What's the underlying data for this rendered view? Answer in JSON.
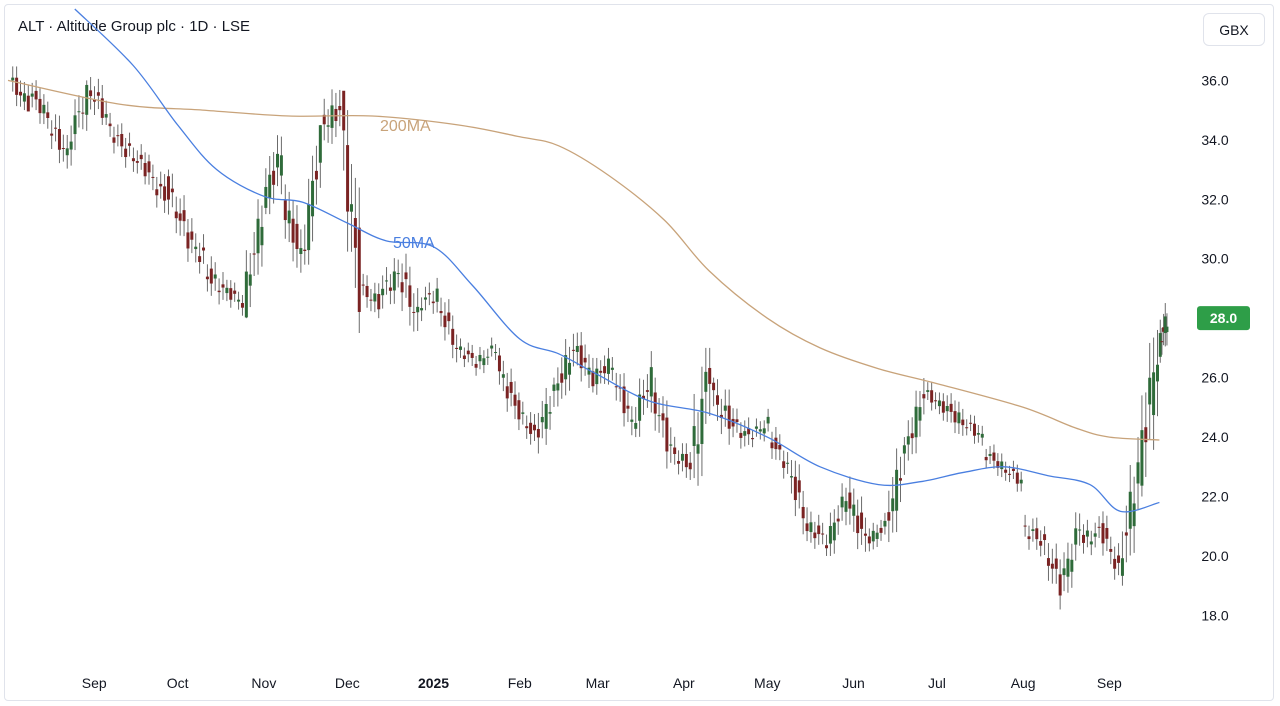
{
  "header": {
    "title": "ALT · Altitude Group plc · 1D · LSE"
  },
  "currency_button": {
    "label": "GBX"
  },
  "price_badge": {
    "label": "28.0",
    "color": "#2e9e48"
  },
  "ma_labels": {
    "ma200": "200MA",
    "ma50": "50MA"
  },
  "colors": {
    "up": "#2f6b3a",
    "down": "#7a2323",
    "ma200": "#c8a37a",
    "ma50": "#4a7fe0"
  },
  "chart_data": {
    "type": "candlestick",
    "title": "ALT · Altitude Group plc · 1D · LSE",
    "currency": "GBX",
    "y_ticks": [
      "36.0",
      "34.0",
      "32.0",
      "30.0",
      "28.0",
      "26.0",
      "24.0",
      "22.0",
      "20.0",
      "18.0"
    ],
    "ylim": [
      16.5,
      38.3
    ],
    "x_ticks": [
      {
        "label": "Sep",
        "date": "2024-09-01",
        "bold": false
      },
      {
        "label": "Oct",
        "date": "2024-10-01",
        "bold": false
      },
      {
        "label": "Nov",
        "date": "2024-11-01",
        "bold": false
      },
      {
        "label": "Dec",
        "date": "2024-12-01",
        "bold": false
      },
      {
        "label": "2025",
        "date": "2025-01-01",
        "bold": true
      },
      {
        "label": "Feb",
        "date": "2025-02-01",
        "bold": false
      },
      {
        "label": "Mar",
        "date": "2025-03-01",
        "bold": false
      },
      {
        "label": "Apr",
        "date": "2025-04-01",
        "bold": false
      },
      {
        "label": "May",
        "date": "2025-05-01",
        "bold": false
      },
      {
        "label": "Jun",
        "date": "2025-06-01",
        "bold": false
      },
      {
        "label": "Jul",
        "date": "2025-07-01",
        "bold": false
      },
      {
        "label": "Aug",
        "date": "2025-08-01",
        "bold": false
      },
      {
        "label": "Sep",
        "date": "2025-09-01",
        "bold": false
      }
    ],
    "last_price": 28.0,
    "ohlc_approx": [
      [
        "2024-08-02",
        36.0,
        37.1,
        35.0,
        35.2
      ],
      [
        "2024-08-09",
        35.6,
        36.2,
        34.2,
        34.8
      ],
      [
        "2024-08-16",
        34.5,
        35.0,
        32.5,
        33.5
      ],
      [
        "2024-08-23",
        34.0,
        36.0,
        33.0,
        35.5
      ],
      [
        "2024-08-30",
        35.8,
        37.0,
        34.5,
        34.8
      ],
      [
        "2024-09-06",
        34.5,
        35.0,
        33.0,
        33.6
      ],
      [
        "2024-09-13",
        33.7,
        34.5,
        32.5,
        33.0
      ],
      [
        "2024-09-20",
        33.0,
        33.5,
        31.2,
        32.0
      ],
      [
        "2024-09-27",
        32.5,
        33.0,
        30.2,
        31.0
      ],
      [
        "2024-10-04",
        30.8,
        32.0,
        29.5,
        30.0
      ],
      [
        "2024-10-11",
        29.5,
        30.5,
        28.2,
        29.0
      ],
      [
        "2024-10-18",
        29.0,
        29.5,
        28.0,
        28.5
      ],
      [
        "2024-10-25",
        28.5,
        32.0,
        28.0,
        31.5
      ],
      [
        "2024-11-01",
        32.0,
        35.0,
        31.5,
        33.5
      ],
      [
        "2024-11-08",
        32.0,
        32.5,
        29.0,
        30.0
      ],
      [
        "2024-11-15",
        30.0,
        34.5,
        29.8,
        34.0
      ],
      [
        "2024-11-22",
        34.5,
        36.0,
        33.0,
        35.0
      ],
      [
        "2024-11-29",
        34.8,
        35.0,
        27.5,
        29.0
      ],
      [
        "2024-12-06",
        29.0,
        30.0,
        28.0,
        28.5
      ],
      [
        "2024-12-13",
        28.8,
        30.5,
        28.0,
        29.5
      ],
      [
        "2024-12-20",
        29.5,
        31.0,
        27.5,
        28.0
      ],
      [
        "2024-12-27",
        28.5,
        29.5,
        27.5,
        28.8
      ],
      [
        "2025-01-03",
        28.5,
        29.0,
        26.5,
        27.0
      ],
      [
        "2025-01-10",
        27.0,
        27.5,
        26.0,
        26.5
      ],
      [
        "2025-01-17",
        26.5,
        27.5,
        26.0,
        27.0
      ],
      [
        "2025-01-24",
        26.5,
        27.0,
        24.5,
        25.0
      ],
      [
        "2025-01-31",
        25.0,
        25.5,
        23.5,
        24.0
      ],
      [
        "2025-02-07",
        24.0,
        26.0,
        23.0,
        25.5
      ],
      [
        "2025-02-14",
        25.5,
        28.0,
        25.0,
        27.0
      ],
      [
        "2025-02-21",
        27.0,
        28.0,
        25.5,
        26.0
      ],
      [
        "2025-02-28",
        26.0,
        27.0,
        25.0,
        26.5
      ],
      [
        "2025-03-07",
        26.0,
        26.5,
        24.0,
        24.5
      ],
      [
        "2025-03-14",
        24.5,
        27.0,
        24.0,
        26.0
      ],
      [
        "2025-03-21",
        25.5,
        26.0,
        22.8,
        23.5
      ],
      [
        "2025-03-28",
        23.5,
        24.5,
        22.5,
        23.0
      ],
      [
        "2025-04-04",
        23.0,
        27.0,
        21.0,
        26.5
      ],
      [
        "2025-04-11",
        25.5,
        26.0,
        23.0,
        24.5
      ],
      [
        "2025-04-18",
        24.5,
        25.0,
        23.0,
        24.0
      ],
      [
        "2025-04-25",
        24.0,
        25.0,
        23.5,
        24.5
      ],
      [
        "2025-05-02",
        24.0,
        24.5,
        22.5,
        23.0
      ],
      [
        "2025-05-09",
        23.0,
        23.5,
        20.5,
        21.0
      ],
      [
        "2025-05-16",
        21.0,
        22.0,
        20.0,
        20.5
      ],
      [
        "2025-05-23",
        20.5,
        22.5,
        20.0,
        22.0
      ],
      [
        "2025-05-30",
        22.0,
        23.0,
        20.0,
        20.5
      ],
      [
        "2025-06-06",
        20.5,
        21.5,
        20.0,
        21.0
      ],
      [
        "2025-06-13",
        21.0,
        24.0,
        20.0,
        23.5
      ],
      [
        "2025-06-20",
        23.5,
        26.0,
        23.0,
        25.5
      ],
      [
        "2025-06-27",
        25.5,
        26.0,
        24.5,
        25.0
      ],
      [
        "2025-07-04",
        25.0,
        26.0,
        24.0,
        24.5
      ],
      [
        "2025-07-11",
        24.5,
        25.0,
        23.5,
        24.0
      ],
      [
        "2025-07-18",
        23.5,
        24.0,
        22.5,
        23.0
      ],
      [
        "2025-07-25",
        23.0,
        23.5,
        22.0,
        22.5
      ],
      [
        "2025-08-01",
        21.0,
        21.5,
        19.5,
        20.5
      ],
      [
        "2025-08-08",
        20.5,
        21.0,
        18.2,
        19.0
      ],
      [
        "2025-08-15",
        19.0,
        21.5,
        18.5,
        21.0
      ],
      [
        "2025-08-22",
        20.5,
        21.5,
        19.5,
        20.8
      ],
      [
        "2025-08-29",
        21.0,
        21.5,
        19.2,
        19.5
      ],
      [
        "2025-09-05",
        19.5,
        24.0,
        19.0,
        23.0
      ],
      [
        "2025-09-12",
        23.0,
        28.5,
        22.0,
        27.0
      ],
      [
        "2025-09-19",
        27.0,
        29.0,
        26.5,
        28.0
      ]
    ],
    "ma200_approx": [
      [
        "2024-08-01",
        36.0
      ],
      [
        "2024-09-10",
        35.2
      ],
      [
        "2024-10-10",
        35.0
      ],
      [
        "2024-11-10",
        34.8
      ],
      [
        "2024-12-10",
        34.8
      ],
      [
        "2025-01-10",
        34.5
      ],
      [
        "2025-02-01",
        34.1
      ],
      [
        "2025-02-15",
        33.8
      ],
      [
        "2025-03-05",
        32.8
      ],
      [
        "2025-03-25",
        31.3
      ],
      [
        "2025-04-10",
        29.6
      ],
      [
        "2025-05-01",
        28.0
      ],
      [
        "2025-05-20",
        27.0
      ],
      [
        "2025-06-10",
        26.3
      ],
      [
        "2025-07-01",
        25.8
      ],
      [
        "2025-08-01",
        25.0
      ],
      [
        "2025-08-20",
        24.3
      ],
      [
        "2025-09-01",
        24.0
      ],
      [
        "2025-09-19",
        23.9
      ]
    ],
    "ma50_approx": [
      [
        "2024-08-25",
        38.4
      ],
      [
        "2024-09-15",
        36.5
      ],
      [
        "2024-10-01",
        34.5
      ],
      [
        "2024-10-15",
        33.0
      ],
      [
        "2024-11-01",
        32.1
      ],
      [
        "2024-11-15",
        31.9
      ],
      [
        "2024-12-01",
        31.2
      ],
      [
        "2024-12-15",
        30.6
      ],
      [
        "2025-01-01",
        30.4
      ],
      [
        "2025-01-15",
        29.1
      ],
      [
        "2025-02-01",
        27.3
      ],
      [
        "2025-02-15",
        26.8
      ],
      [
        "2025-03-01",
        26.1
      ],
      [
        "2025-03-20",
        25.2
      ],
      [
        "2025-04-10",
        24.8
      ],
      [
        "2025-05-01",
        24.0
      ],
      [
        "2025-05-20",
        23.0
      ],
      [
        "2025-06-10",
        22.4
      ],
      [
        "2025-06-25",
        22.5
      ],
      [
        "2025-07-10",
        22.8
      ],
      [
        "2025-07-25",
        23.0
      ],
      [
        "2025-08-10",
        22.7
      ],
      [
        "2025-08-25",
        22.4
      ],
      [
        "2025-09-05",
        21.5
      ],
      [
        "2025-09-19",
        21.8
      ]
    ]
  }
}
